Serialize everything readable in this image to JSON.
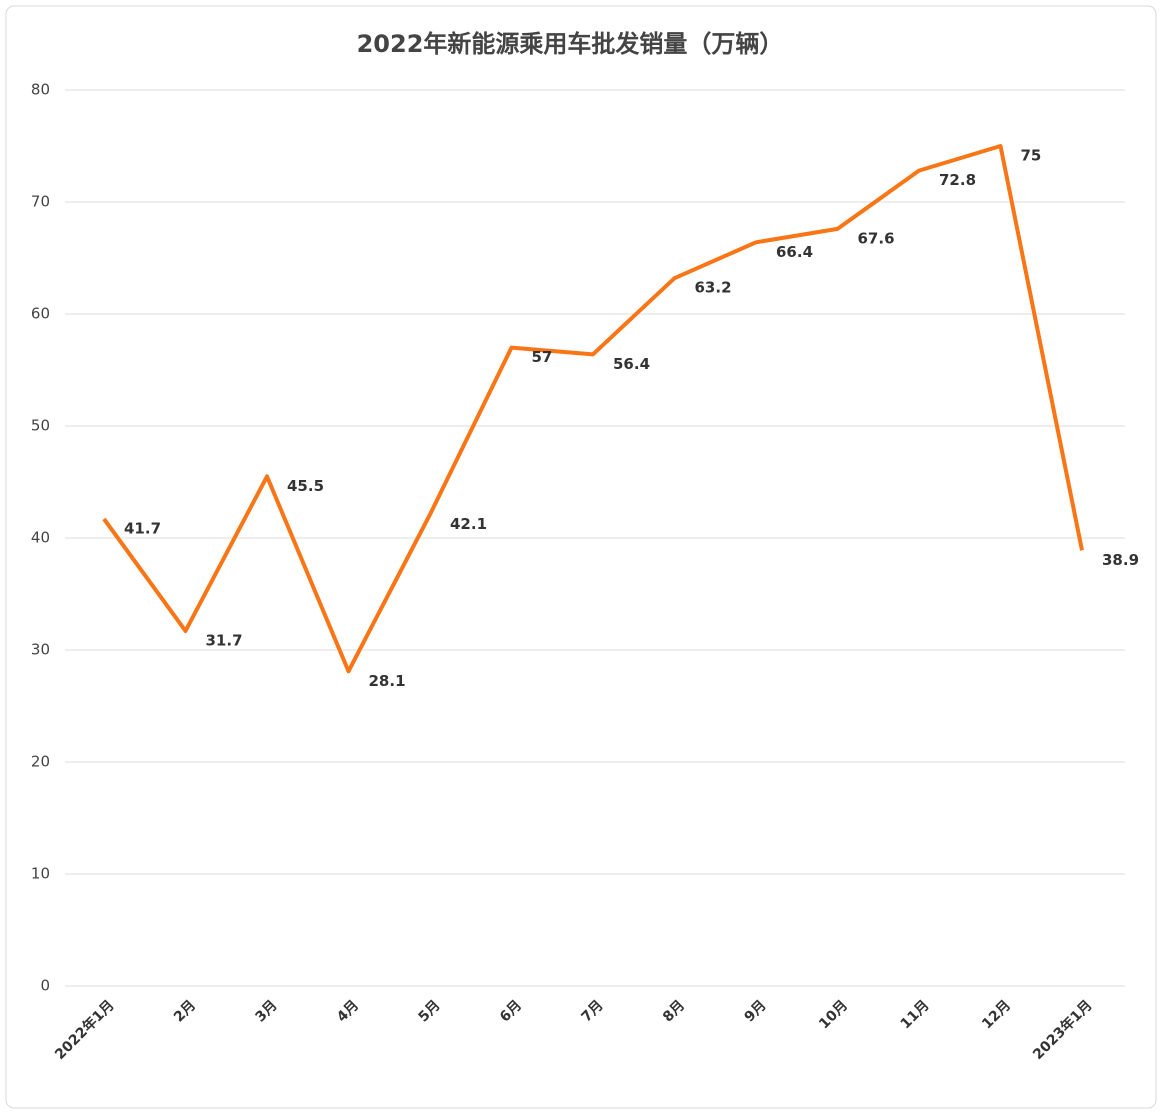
{
  "chart_data": {
    "type": "line",
    "title": "2022年新能源乘用车批发销量（万辆）",
    "categories": [
      "2022年1月",
      "2月",
      "3月",
      "4月",
      "5月",
      "6月",
      "7月",
      "8月",
      "9月",
      "10月",
      "11月",
      "12月",
      "2023年1月"
    ],
    "series": [
      {
        "name": "批发销量",
        "color": "#f97516",
        "values": [
          41.7,
          31.7,
          45.5,
          28.1,
          42.1,
          57,
          56.4,
          63.2,
          66.4,
          67.6,
          72.8,
          75,
          38.9
        ]
      }
    ],
    "ylim": [
      0,
      80
    ],
    "yticks": [
      0,
      10,
      20,
      30,
      40,
      50,
      60,
      70,
      80
    ],
    "grid": true
  }
}
